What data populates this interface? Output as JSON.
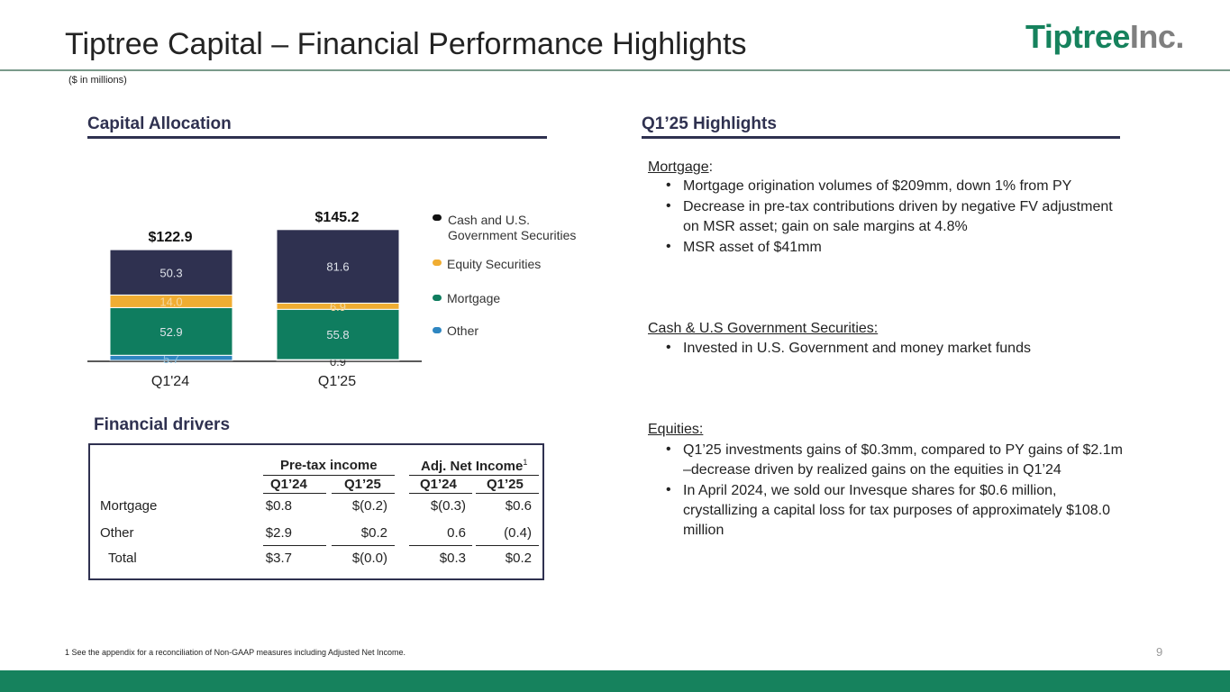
{
  "header": {
    "title": "Tiptree Capital – Financial Performance Highlights",
    "logo_main": "Tiptree",
    "logo_suffix": "Inc.",
    "units_note": "($ in millions)"
  },
  "capital_allocation": {
    "heading": "Capital Allocation"
  },
  "chart_data": {
    "type": "bar",
    "stacked": true,
    "categories": [
      "Q1'24",
      "Q1'25"
    ],
    "totals": [
      "$122.9",
      "$145.2"
    ],
    "series": [
      {
        "name": "Other",
        "values": [
          5.7,
          0.9
        ],
        "color": "#2e86c1"
      },
      {
        "name": "Mortgage",
        "values": [
          52.9,
          55.8
        ],
        "color": "#0f7d5f"
      },
      {
        "name": "Equity Securities",
        "values": [
          14.0,
          6.9
        ],
        "color": "#f0ad32"
      },
      {
        "name": "Cash and U.S. Government Securities",
        "values": [
          50.3,
          81.6
        ],
        "color": "#2f3150"
      }
    ],
    "legend": [
      "Cash and U.S.",
      "Government Securities",
      "Equity Securities",
      "Mortgage",
      "Other"
    ],
    "legend_placement": "right"
  },
  "financial_drivers": {
    "heading": "Financial drivers",
    "group_pretax": "Pre-tax income",
    "group_adj": "Adj. Net Income",
    "group_adj_sup": "1",
    "cols": [
      "Q1’24",
      "Q1’25",
      "Q1’24",
      "Q1’25"
    ],
    "rows": [
      {
        "label": "Mortgage",
        "values": [
          "$0.8",
          "$(0.2)",
          "$(0.3)",
          "$0.6"
        ]
      },
      {
        "label": "Other",
        "values": [
          "$2.9",
          "$0.2",
          "0.6",
          "(0.4)"
        ]
      },
      {
        "label": "Total",
        "values": [
          "$3.7",
          "$(0.0)",
          "$0.3",
          "$0.2"
        ]
      }
    ]
  },
  "highlights": {
    "heading": "Q1’25 Highlights",
    "mortgage_head": "Mortgage",
    "mortgage_colon": ":",
    "mortgage_b1": "Mortgage origination volumes of $209mm, down 1% from PY",
    "mortgage_b2a": "Decrease in pre-tax contributions driven by negative FV adjustment",
    "mortgage_b2b": "on MSR asset; gain on sale margins at 4.8%",
    "mortgage_b3": "MSR asset of $41mm",
    "cash_head": "Cash & U.S Government Securities:",
    "cash_b1": "Invested in U.S. Government and money market funds",
    "eq_head": "Equities:",
    "eq_b1a": "Q1’25 investments gains of $0.3mm, compared to PY gains of $2.1m",
    "eq_b1b": "–decrease driven by realized gains on the equities in Q1’24",
    "eq_b2a": "In April 2024, we sold our Invesque shares for $0.6 million,",
    "eq_b2b": "crystallizing a capital loss for tax purposes of approximately $108.0",
    "eq_b2c": "million"
  },
  "footer": {
    "footnote": "1 See the appendix for a reconciliation of Non-GAAP measures including Adjusted Net Income.",
    "page_number": "9"
  }
}
